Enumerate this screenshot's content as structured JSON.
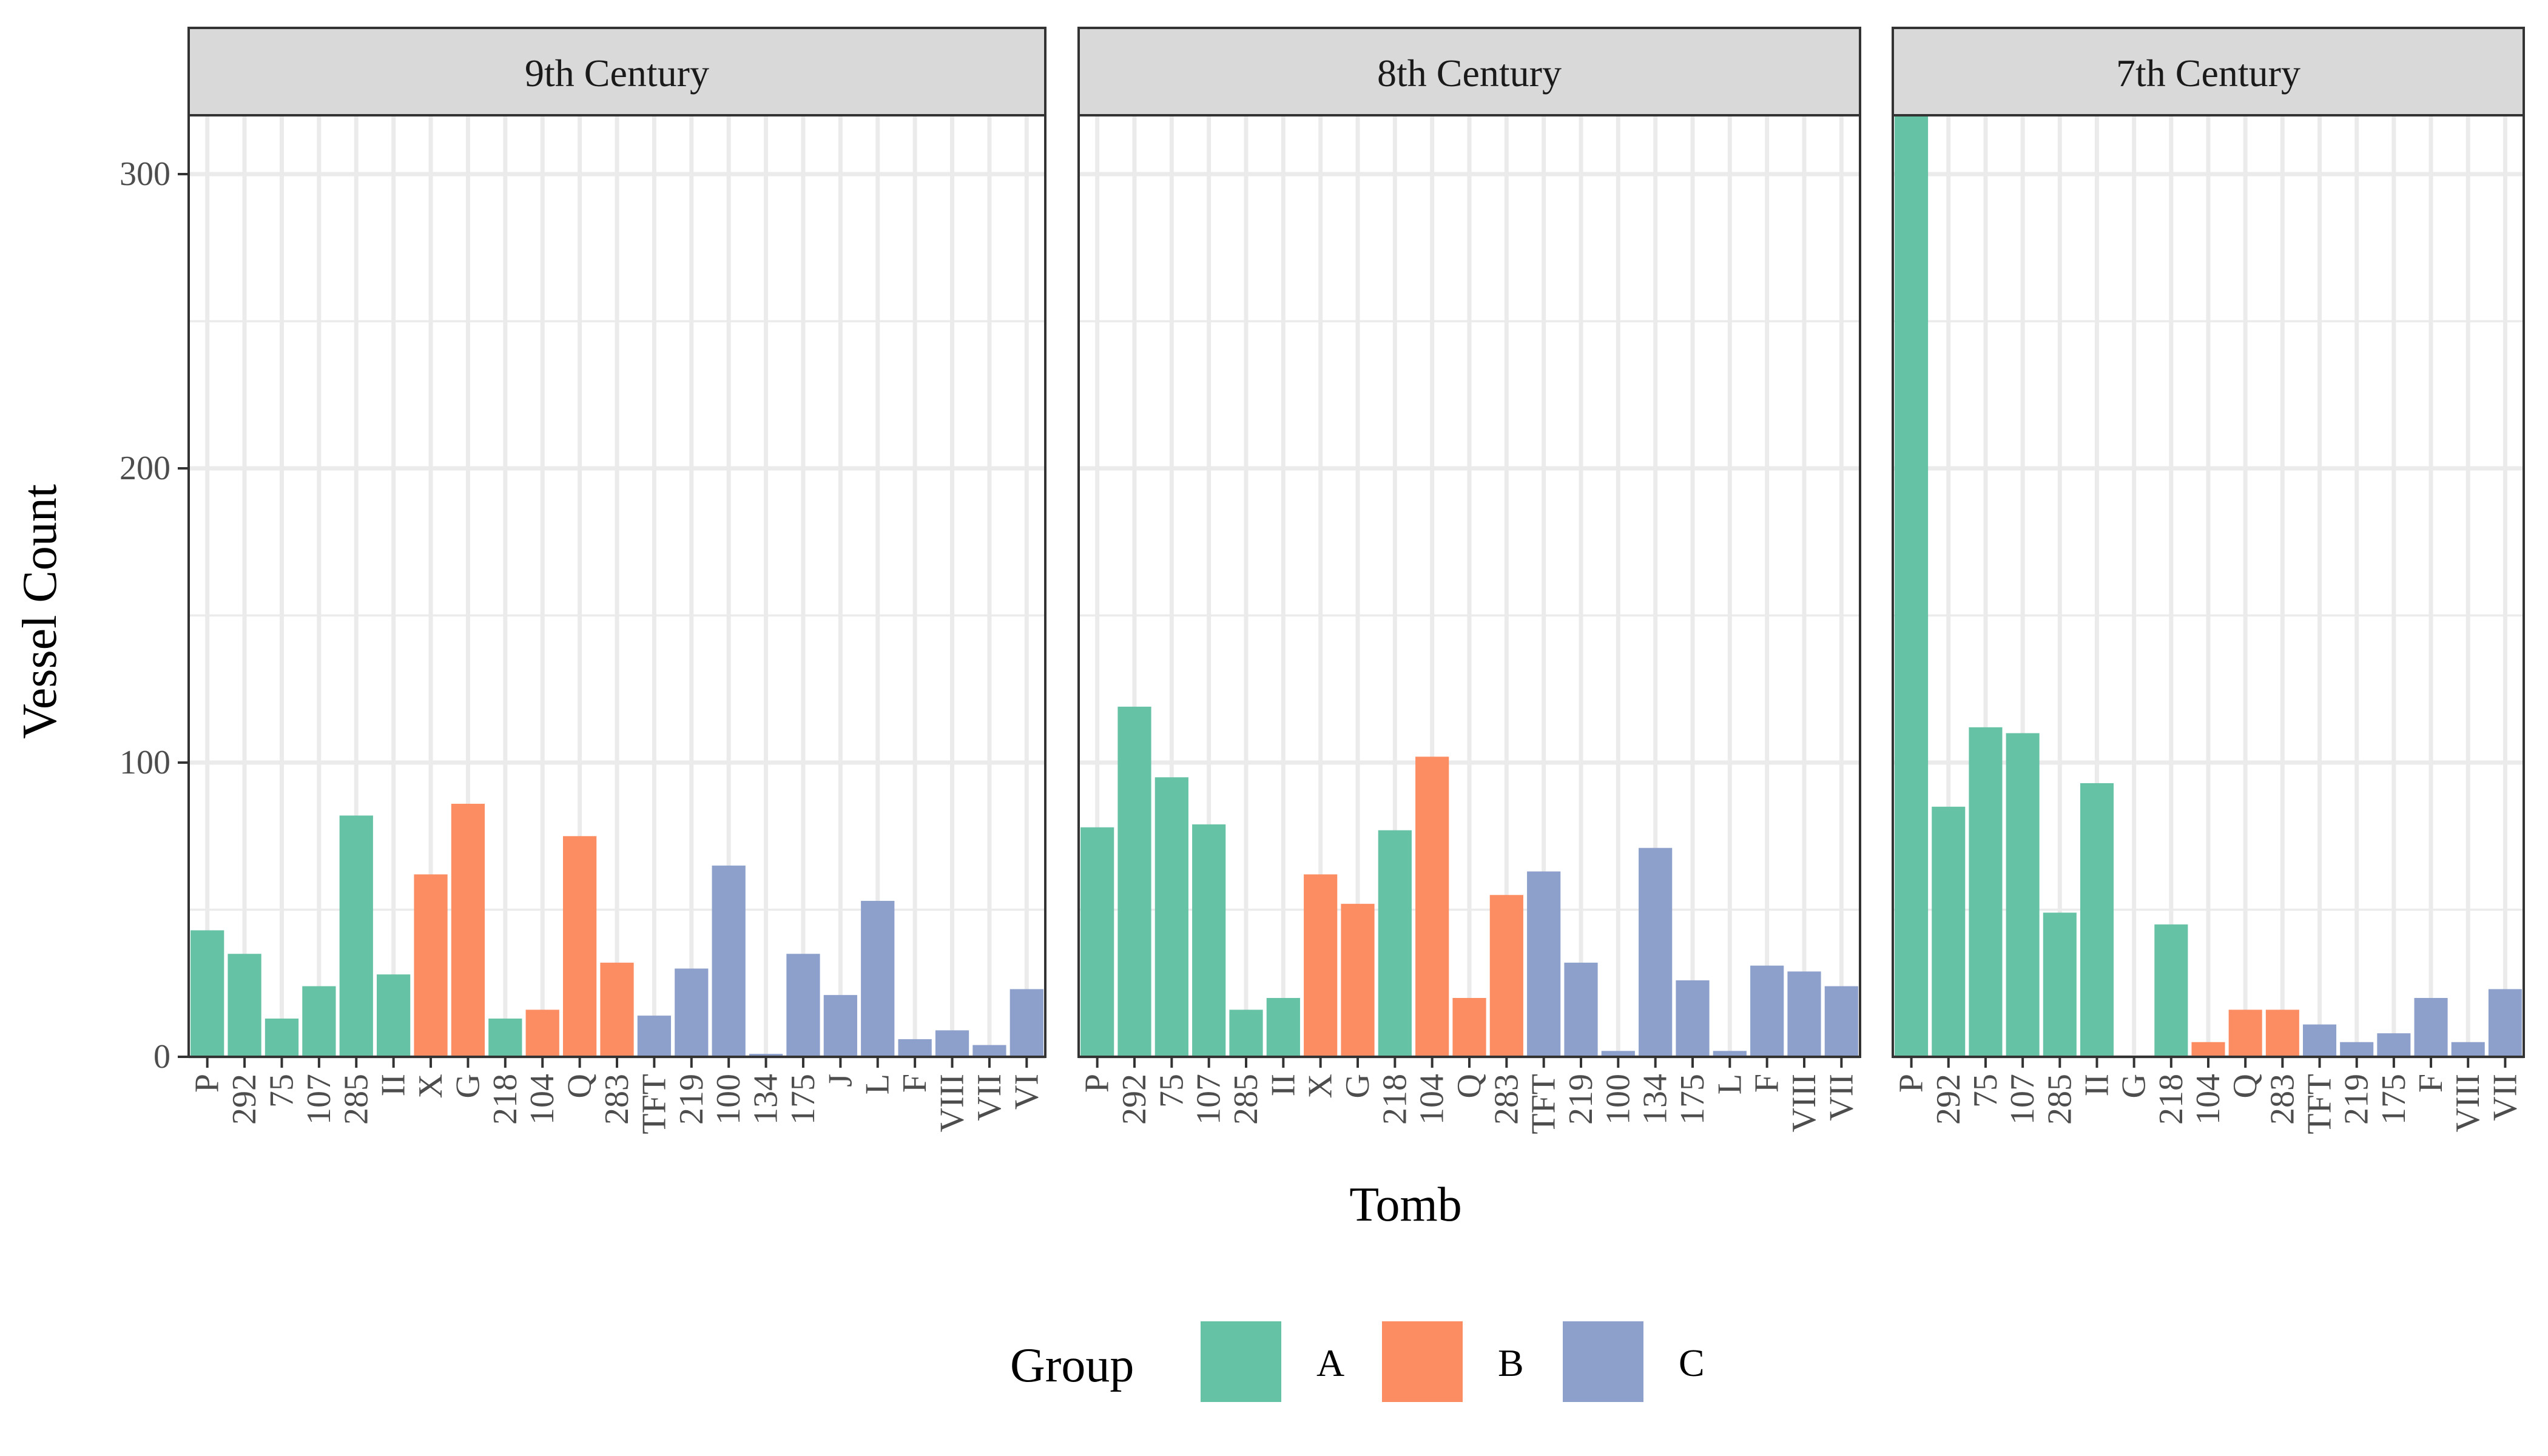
{
  "chart_data": {
    "type": "bar",
    "xlabel": "Tomb",
    "ylabel": "Vessel Count",
    "ylim": [
      0,
      320
    ],
    "yticks": [
      0,
      100,
      200,
      300
    ],
    "grid": true,
    "legend": {
      "title": "Group",
      "position": "bottom",
      "entries": [
        {
          "label": "A",
          "color": "#66C2A5"
        },
        {
          "label": "B",
          "color": "#FC8D62"
        },
        {
          "label": "C",
          "color": "#8DA0CB"
        }
      ]
    },
    "panels": [
      {
        "title": "9th Century",
        "categories": [
          "P",
          "292",
          "75",
          "107",
          "285",
          "II",
          "X",
          "G",
          "218",
          "104",
          "Q",
          "283",
          "TFT",
          "219",
          "100",
          "134",
          "175",
          "J",
          "L",
          "F",
          "VIII",
          "VII",
          "VI"
        ],
        "groups": [
          "A",
          "A",
          "A",
          "A",
          "A",
          "A",
          "B",
          "B",
          "A",
          "B",
          "B",
          "B",
          "C",
          "C",
          "C",
          "C",
          "C",
          "C",
          "C",
          "C",
          "C",
          "C",
          "C"
        ],
        "values": [
          43,
          35,
          13,
          24,
          82,
          28,
          62,
          86,
          13,
          16,
          75,
          32,
          14,
          30,
          65,
          1,
          35,
          21,
          53,
          6,
          9,
          4,
          23
        ]
      },
      {
        "title": "8th Century",
        "categories": [
          "P",
          "292",
          "75",
          "107",
          "285",
          "II",
          "X",
          "G",
          "218",
          "104",
          "Q",
          "283",
          "TFT",
          "219",
          "100",
          "134",
          "175",
          "L",
          "F",
          "VIII",
          "VII"
        ],
        "groups": [
          "A",
          "A",
          "A",
          "A",
          "A",
          "A",
          "B",
          "B",
          "A",
          "B",
          "B",
          "B",
          "C",
          "C",
          "C",
          "C",
          "C",
          "C",
          "C",
          "C",
          "C"
        ],
        "values": [
          78,
          119,
          95,
          79,
          16,
          20,
          62,
          52,
          77,
          102,
          20,
          55,
          63,
          32,
          2,
          71,
          26,
          2,
          31,
          29,
          24
        ]
      },
      {
        "title": "7th Century",
        "categories": [
          "P",
          "292",
          "75",
          "107",
          "285",
          "II",
          "G",
          "218",
          "104",
          "Q",
          "283",
          "TFT",
          "219",
          "175",
          "F",
          "VIII",
          "VII"
        ],
        "groups": [
          "A",
          "A",
          "A",
          "A",
          "A",
          "A",
          "B",
          "A",
          "B",
          "B",
          "B",
          "C",
          "C",
          "C",
          "C",
          "C",
          "C"
        ],
        "values": [
          320,
          85,
          112,
          110,
          49,
          93,
          0,
          45,
          5,
          16,
          16,
          11,
          5,
          8,
          20,
          5,
          23
        ]
      }
    ]
  }
}
